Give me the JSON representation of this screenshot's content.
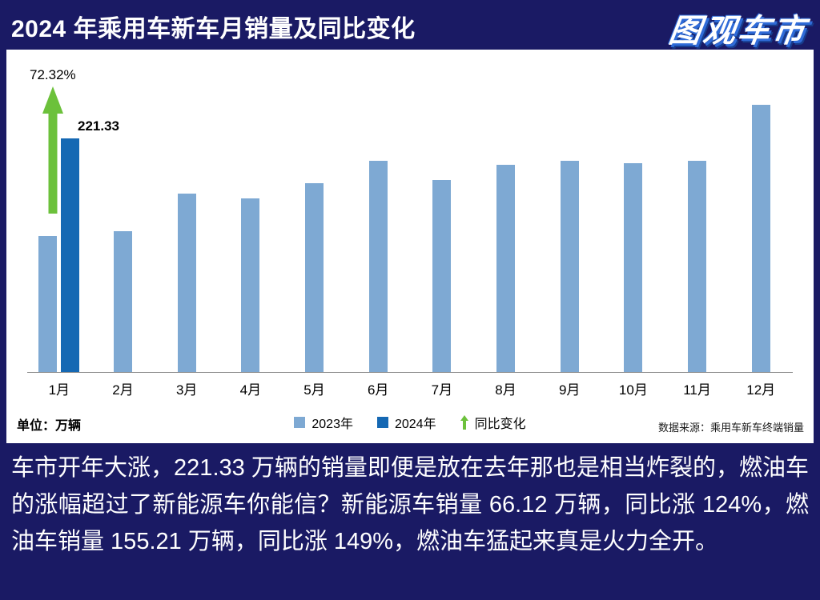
{
  "theme": {
    "background": "#1A1A64",
    "panel": "#FFFFFF",
    "header_text": "#FFFFFF"
  },
  "header": {
    "title": "2024 年乘用车新车月销量及同比变化",
    "logo_text": "图观车市"
  },
  "chart_data": {
    "type": "bar",
    "title": "2024 年乘用车新车月销量及同比变化",
    "categories": [
      "1月",
      "2月",
      "3月",
      "4月",
      "5月",
      "6月",
      "7月",
      "8月",
      "9月",
      "10月",
      "11月",
      "12月"
    ],
    "series": [
      {
        "name": "2023年",
        "color": "#7EA9D3",
        "values": [
          128.4,
          133,
          169,
          164,
          179,
          200,
          182,
          196,
          200,
          198,
          200,
          253
        ]
      },
      {
        "name": "2024年",
        "color": "#1568B3",
        "values": [
          221.33,
          null,
          null,
          null,
          null,
          null,
          null,
          null,
          null,
          null,
          null,
          null
        ]
      }
    ],
    "annotations": {
      "growth_percent_label": "72.32%",
      "jan_2024_value_label": "221.33"
    },
    "legend_change_label": "同比变化",
    "growth_arrow_color": "#6CC13B",
    "unit_label": "单位：万辆",
    "source_label": "数据来源：乘用车新车终端销量",
    "ylim": [
      0,
      265
    ],
    "grid": false,
    "legend_position": "bottom"
  },
  "footer": {
    "text": "车市开年大涨，221.33 万辆的销量即便是放在去年那也是相当炸裂的，燃油车的涨幅超过了新能源车你能信？新能源车销量 66.12 万辆，同比涨 124%，燃油车销量 155.21 万辆，同比涨 149%，燃油车猛起来真是火力全开。"
  }
}
